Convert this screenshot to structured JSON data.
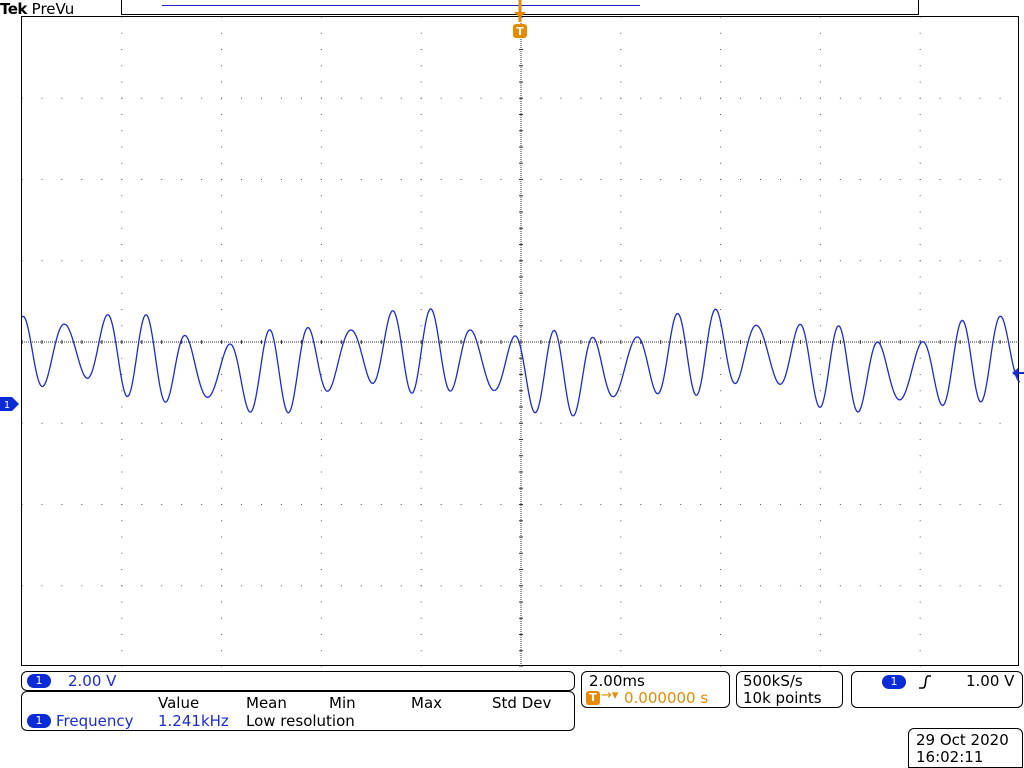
{
  "brand": {
    "name": "Tek",
    "mode": "PreVu"
  },
  "trigger_marker": {
    "label": "T"
  },
  "channel": {
    "number": "1",
    "scale": "2.00 V",
    "color": "#1b2bd0"
  },
  "measurement": {
    "headers": [
      "Value",
      "Mean",
      "Min",
      "Max",
      "Std Dev"
    ],
    "channel": "1",
    "name": "Frequency",
    "value": "1.241kHz",
    "note": "Low resolution"
  },
  "timebase": {
    "scale": "2.00ms",
    "trigger_position": "0.000000 s",
    "trigger_position_color": "#e88a00"
  },
  "acquisition": {
    "sample_rate": "500kS/s",
    "record_length": "10k points"
  },
  "trigger": {
    "channel": "1",
    "slope": "rising",
    "level": "1.00 V"
  },
  "datetime": {
    "date": "29 Oct  2020",
    "time": "16:02:11"
  }
}
